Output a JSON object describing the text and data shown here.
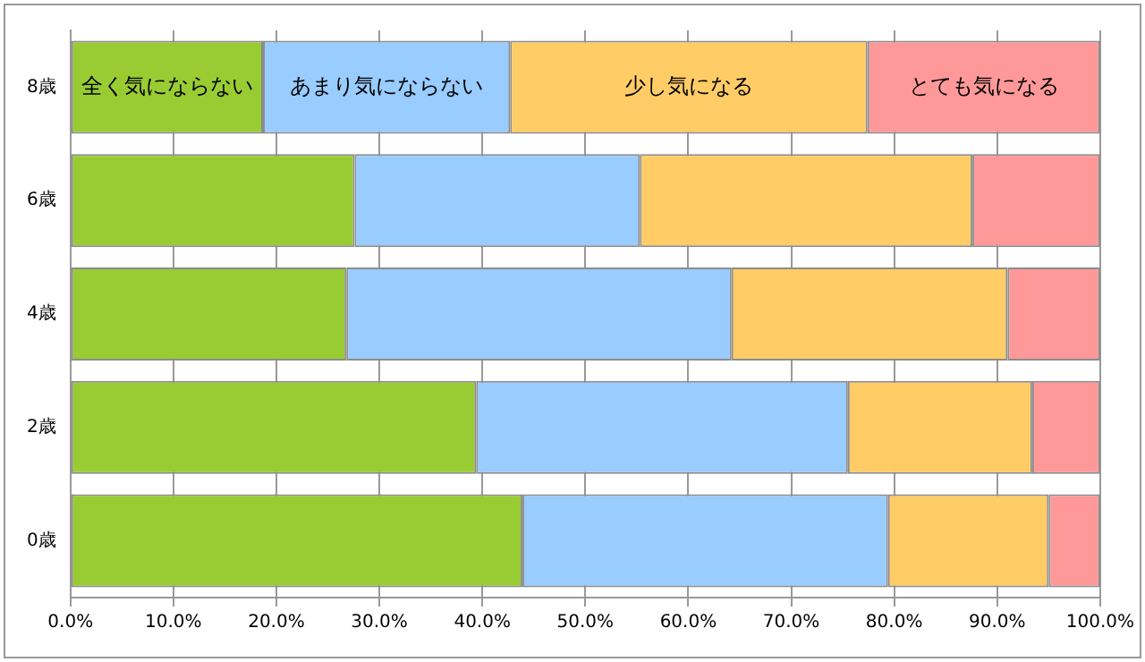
{
  "chart_data": {
    "type": "bar",
    "orientation": "horizontal",
    "stacked": true,
    "categories": [
      "8歳",
      "6歳",
      "4歳",
      "2歳",
      "0歳"
    ],
    "series": [
      {
        "name": "全く気にならない",
        "color": "#99cc33",
        "values": [
          18.7,
          27.6,
          26.8,
          39.4,
          43.9
        ]
      },
      {
        "name": "あまり気にならない",
        "color": "#99ccff",
        "values": [
          24.0,
          27.7,
          37.4,
          36.1,
          35.5
        ]
      },
      {
        "name": "少し気になる",
        "color": "#ffcc66",
        "values": [
          34.7,
          32.3,
          26.8,
          17.9,
          15.6
        ]
      },
      {
        "name": "とても気になる",
        "color": "#ff9999",
        "values": [
          22.6,
          12.4,
          9.0,
          6.6,
          5.0
        ]
      }
    ],
    "xlim": [
      0,
      100
    ],
    "xticks": [
      {
        "value": 0,
        "label": "0.0%"
      },
      {
        "value": 10,
        "label": "10.0%"
      },
      {
        "value": 20,
        "label": "20.0%"
      },
      {
        "value": 30,
        "label": "30.0%"
      },
      {
        "value": 40,
        "label": "40.0%"
      },
      {
        "value": 50,
        "label": "50.0%"
      },
      {
        "value": 60,
        "label": "60.0%"
      },
      {
        "value": 70,
        "label": "70.0%"
      },
      {
        "value": 80,
        "label": "80.0%"
      },
      {
        "value": 90,
        "label": "90.0%"
      },
      {
        "value": 100,
        "label": "100.0%"
      }
    ],
    "grid": "x",
    "legend": false
  }
}
